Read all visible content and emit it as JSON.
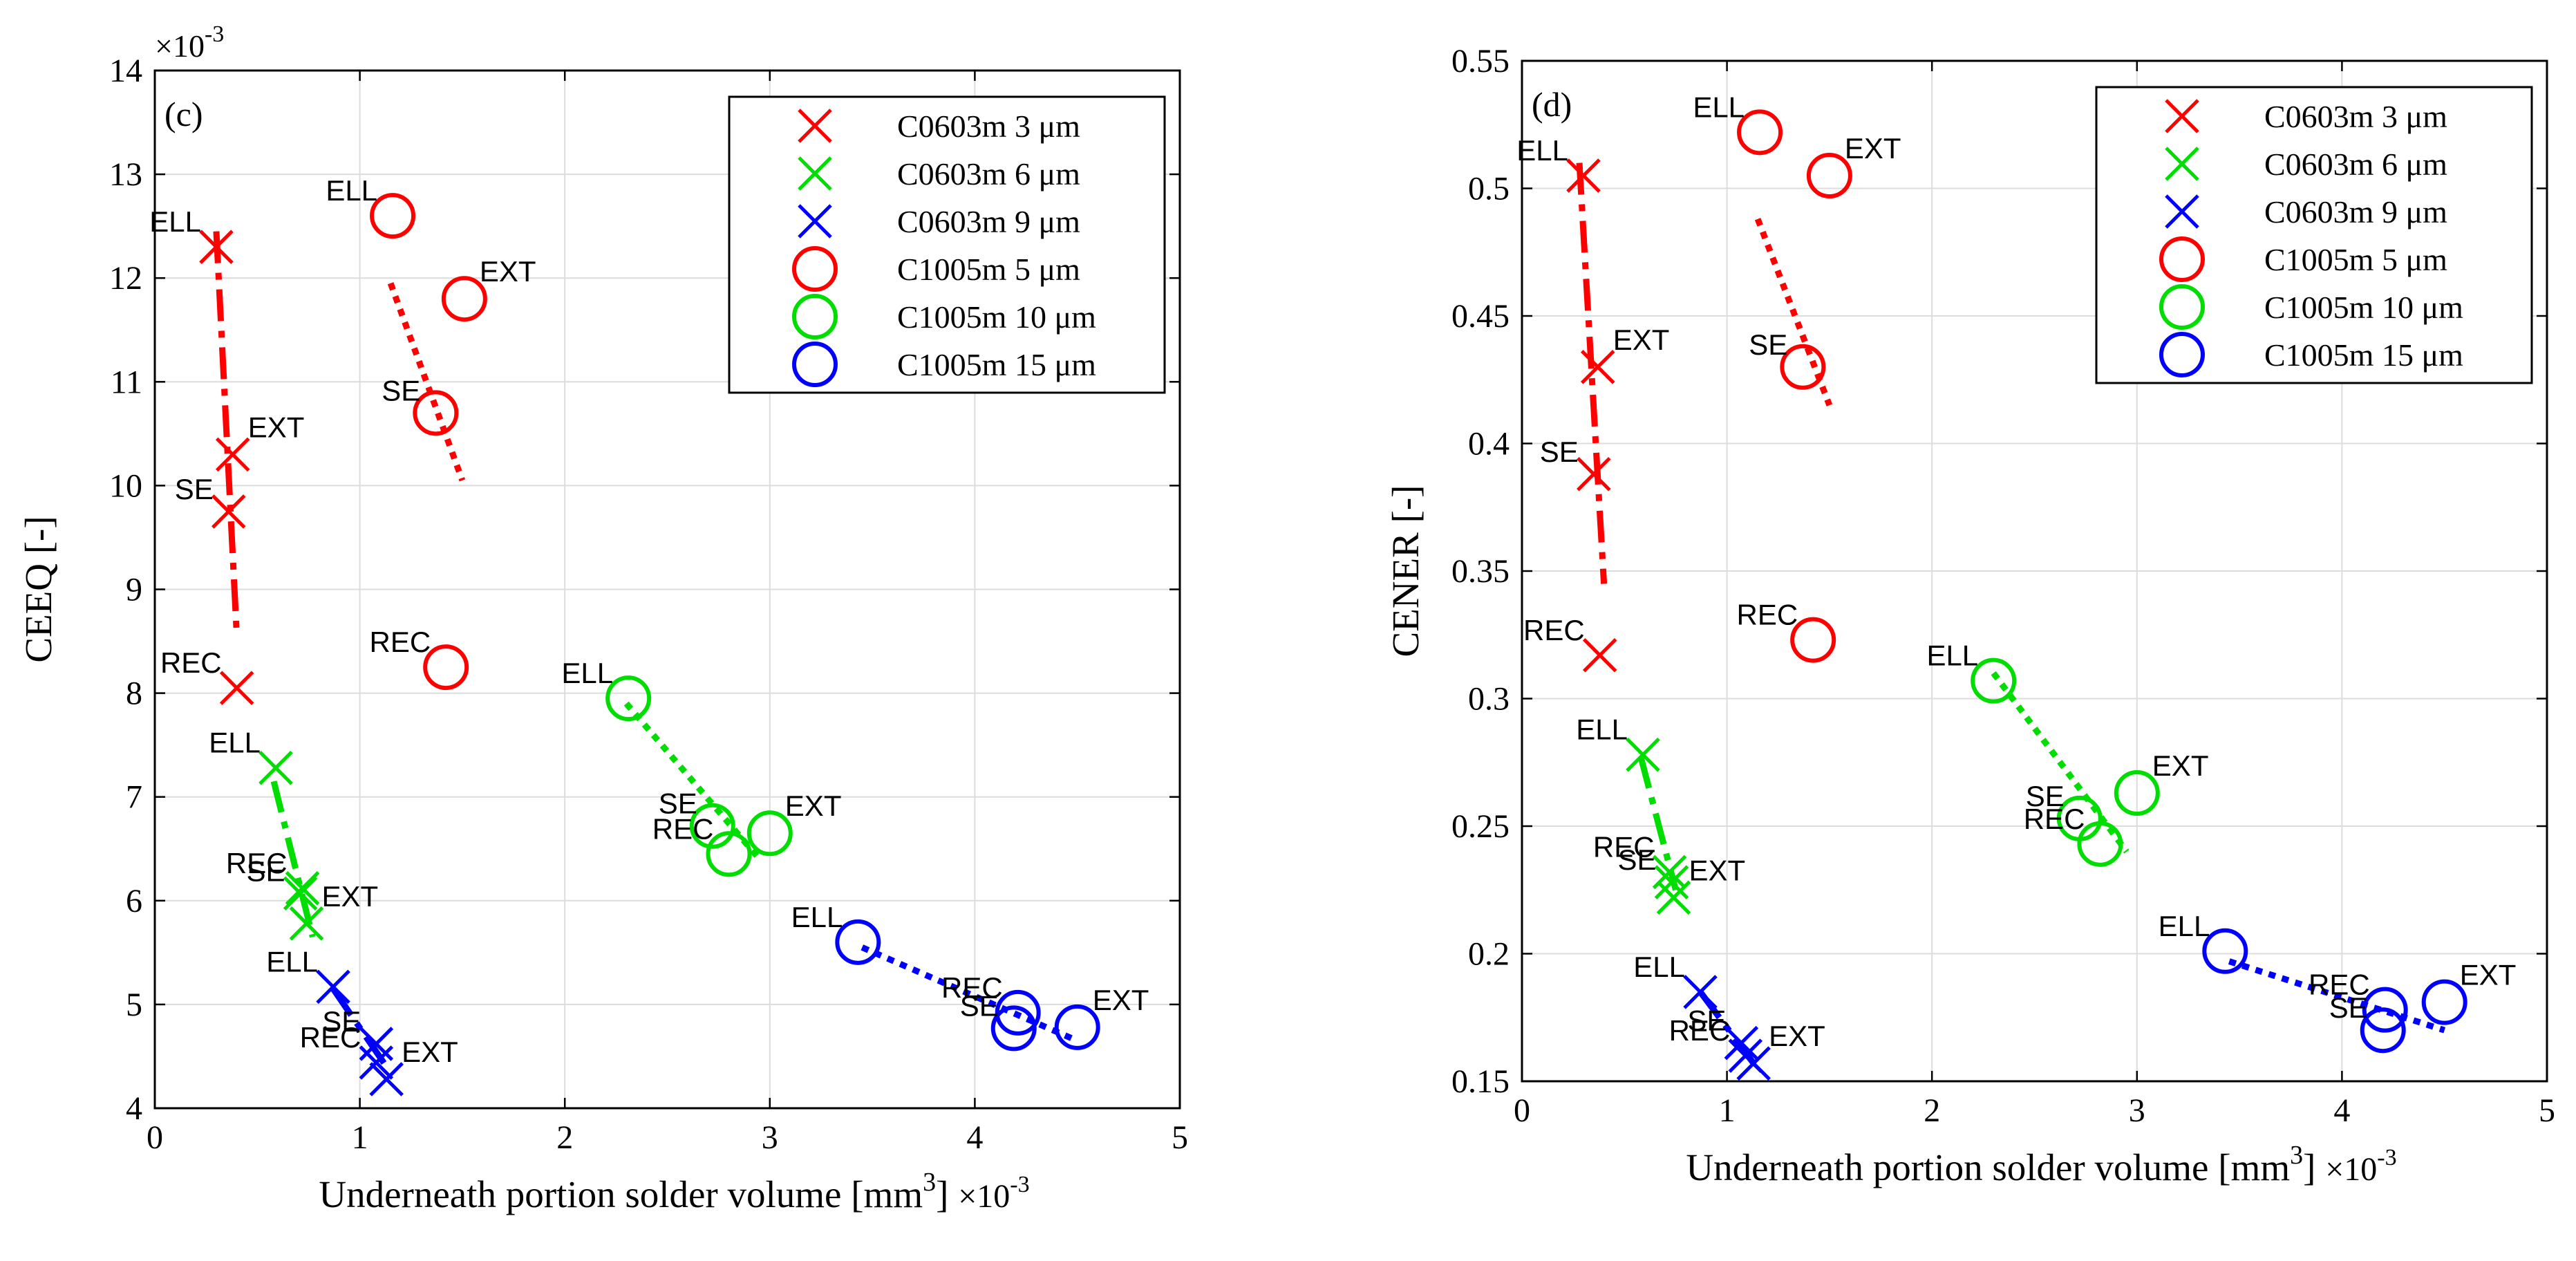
{
  "chart_data": [
    {
      "panel_label": "(c)",
      "type": "scatter",
      "xlabel": "Underneath portion solder volume [mm",
      "xlabel_sup": "3",
      "xlabel_end": "]",
      "ylabel": "CEEQ [-]",
      "x_multiplier": "×10",
      "x_multiplier_exp": "-3",
      "y_multiplier": "×10",
      "y_multiplier_exp": "-3",
      "xlim": [
        0,
        5
      ],
      "ylim": [
        4,
        14
      ],
      "xticks": [
        0,
        1,
        2,
        3,
        4,
        5
      ],
      "yticks": [
        4,
        5,
        6,
        7,
        8,
        9,
        10,
        11,
        12,
        13,
        14
      ],
      "grid": true,
      "legend_position": "top-right",
      "series": [
        {
          "name": "C0603m 3 μm",
          "color": "#ff0000",
          "marker": "x",
          "style": "dashdot",
          "points": [
            {
              "label": "ELL",
              "x": 0.3,
              "y": 12.3
            },
            {
              "label": "EXT",
              "x": 0.38,
              "y": 10.3
            },
            {
              "label": "SE",
              "x": 0.36,
              "y": 9.75
            },
            {
              "label": "REC",
              "x": 0.4,
              "y": 8.05
            }
          ],
          "fit": [
            [
              0.3,
              12.45
            ],
            [
              0.4,
              8.55
            ]
          ]
        },
        {
          "name": "C0603m 6 μm",
          "color": "#00dd00",
          "marker": "x",
          "style": "dashdot",
          "points": [
            {
              "label": "ELL",
              "x": 0.59,
              "y": 7.28
            },
            {
              "label": "REC",
              "x": 0.72,
              "y": 6.12
            },
            {
              "label": "SE",
              "x": 0.71,
              "y": 6.07
            },
            {
              "label": "EXT",
              "x": 0.74,
              "y": 5.78
            }
          ],
          "fit": [
            [
              0.58,
              7.15
            ],
            [
              0.77,
              5.65
            ]
          ]
        },
        {
          "name": "C0603m 9 μm",
          "color": "#0000ff",
          "marker": "x",
          "style": "dashdot",
          "points": [
            {
              "label": "ELL",
              "x": 0.87,
              "y": 5.17
            },
            {
              "label": "SE",
              "x": 1.08,
              "y": 4.62
            },
            {
              "label": "REC",
              "x": 1.08,
              "y": 4.44
            },
            {
              "label": "EXT",
              "x": 1.13,
              "y": 4.28
            }
          ],
          "fit": [
            [
              0.87,
              5.15
            ],
            [
              1.13,
              4.4
            ]
          ]
        },
        {
          "name": "C1005m 5 μm",
          "color": "#ff0000",
          "marker": "o",
          "style": "dotted",
          "points": [
            {
              "label": "ELL",
              "x": 1.16,
              "y": 12.6
            },
            {
              "label": "EXT",
              "x": 1.51,
              "y": 11.8
            },
            {
              "label": "SE",
              "x": 1.37,
              "y": 10.7
            },
            {
              "label": "REC",
              "x": 1.42,
              "y": 8.25
            }
          ],
          "fit": [
            [
              1.15,
              11.95
            ],
            [
              1.5,
              10.05
            ]
          ]
        },
        {
          "name": "C1005m 10 μm",
          "color": "#00dd00",
          "marker": "o",
          "style": "dotted",
          "points": [
            {
              "label": "ELL",
              "x": 2.31,
              "y": 7.95
            },
            {
              "label": "EXT",
              "x": 3.0,
              "y": 6.65
            },
            {
              "label": "SE",
              "x": 2.72,
              "y": 6.72
            },
            {
              "label": "REC",
              "x": 2.8,
              "y": 6.45
            }
          ],
          "fit": [
            [
              2.3,
              7.9
            ],
            [
              2.95,
              6.4
            ]
          ]
        },
        {
          "name": "C1005m 15 μm",
          "color": "#0000ff",
          "marker": "o",
          "style": "dotted",
          "points": [
            {
              "label": "ELL",
              "x": 3.43,
              "y": 5.6
            },
            {
              "label": "REC",
              "x": 4.21,
              "y": 4.92
            },
            {
              "label": "EXT",
              "x": 4.5,
              "y": 4.78
            },
            {
              "label": "SE",
              "x": 4.19,
              "y": 4.77
            }
          ],
          "fit": [
            [
              3.45,
              5.55
            ],
            [
              4.5,
              4.65
            ]
          ]
        }
      ]
    },
    {
      "panel_label": "(d)",
      "type": "scatter",
      "xlabel": "Underneath portion solder volume [mm",
      "xlabel_sup": "3",
      "xlabel_end": "]",
      "ylabel": "CENER [-]",
      "x_multiplier": "×10",
      "x_multiplier_exp": "-3",
      "xlim": [
        0,
        5
      ],
      "ylim": [
        0.15,
        0.55
      ],
      "xticks": [
        0,
        1,
        2,
        3,
        4,
        5
      ],
      "yticks": [
        0.15,
        0.2,
        0.25,
        0.3,
        0.35,
        0.4,
        0.45,
        0.5,
        0.55
      ],
      "ytick_labels": [
        "0.15",
        "0.2",
        "0.25",
        "0.3",
        "0.35",
        "0.4",
        "0.45",
        "0.5",
        "0.55"
      ],
      "grid": true,
      "legend_position": "top-right",
      "series": [
        {
          "name": "C0603m 3 μm",
          "color": "#ff0000",
          "marker": "x",
          "style": "dashdot",
          "points": [
            {
              "label": "ELL",
              "x": 0.3,
              "y": 0.505
            },
            {
              "label": "EXT",
              "x": 0.37,
              "y": 0.43
            },
            {
              "label": "SE",
              "x": 0.35,
              "y": 0.388
            },
            {
              "label": "REC",
              "x": 0.38,
              "y": 0.317
            }
          ],
          "fit": [
            [
              0.28,
              0.51
            ],
            [
              0.4,
              0.345
            ]
          ]
        },
        {
          "name": "C0603m 6 μm",
          "color": "#00dd00",
          "marker": "x",
          "style": "dashdot",
          "points": [
            {
              "label": "ELL",
              "x": 0.59,
              "y": 0.278
            },
            {
              "label": "REC",
              "x": 0.72,
              "y": 0.232
            },
            {
              "label": "SE",
              "x": 0.73,
              "y": 0.228
            },
            {
              "label": "EXT",
              "x": 0.74,
              "y": 0.222
            }
          ],
          "fit": [
            [
              0.58,
              0.277
            ],
            [
              0.75,
              0.225
            ]
          ]
        },
        {
          "name": "C0603m 9 μm",
          "color": "#0000ff",
          "marker": "x",
          "style": "dashdot",
          "points": [
            {
              "label": "ELL",
              "x": 0.87,
              "y": 0.185
            },
            {
              "label": "SE",
              "x": 1.07,
              "y": 0.165
            },
            {
              "label": "REC",
              "x": 1.09,
              "y": 0.16
            },
            {
              "label": "EXT",
              "x": 1.13,
              "y": 0.157
            }
          ],
          "fit": [
            [
              0.87,
              0.185
            ],
            [
              1.13,
              0.157
            ]
          ]
        },
        {
          "name": "C1005m 5 μm",
          "color": "#ff0000",
          "marker": "o",
          "style": "dotted",
          "points": [
            {
              "label": "ELL",
              "x": 1.16,
              "y": 0.522
            },
            {
              "label": "EXT",
              "x": 1.5,
              "y": 0.505
            },
            {
              "label": "SE",
              "x": 1.37,
              "y": 0.43
            },
            {
              "label": "REC",
              "x": 1.42,
              "y": 0.323
            }
          ],
          "fit": [
            [
              1.15,
              0.488
            ],
            [
              1.5,
              0.415
            ]
          ]
        },
        {
          "name": "C1005m 10 μm",
          "color": "#00dd00",
          "marker": "o",
          "style": "dotted",
          "points": [
            {
              "label": "ELL",
              "x": 2.3,
              "y": 0.307
            },
            {
              "label": "EXT",
              "x": 3.0,
              "y": 0.263
            },
            {
              "label": "SE",
              "x": 2.72,
              "y": 0.253
            },
            {
              "label": "REC",
              "x": 2.82,
              "y": 0.243
            }
          ],
          "fit": [
            [
              2.3,
              0.31
            ],
            [
              2.95,
              0.24
            ]
          ]
        },
        {
          "name": "C1005m 15 μm",
          "color": "#0000ff",
          "marker": "o",
          "style": "dotted",
          "points": [
            {
              "label": "ELL",
              "x": 3.43,
              "y": 0.201
            },
            {
              "label": "EXT",
              "x": 4.5,
              "y": 0.181
            },
            {
              "label": "REC",
              "x": 4.21,
              "y": 0.178
            },
            {
              "label": "SE",
              "x": 4.2,
              "y": 0.17
            }
          ],
          "fit": [
            [
              3.45,
              0.197
            ],
            [
              4.5,
              0.17
            ]
          ]
        }
      ]
    }
  ]
}
